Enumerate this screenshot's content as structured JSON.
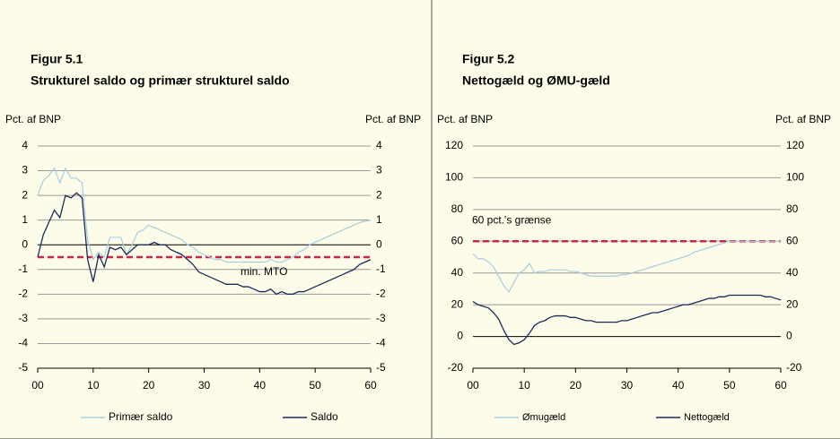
{
  "chart_data": [
    {
      "type": "line",
      "figure_label": "Figur 5.1",
      "title": "Strukturel saldo og primær strukturel saldo",
      "ylabel": "Pct. af BNP",
      "y2label": "Pct. af BNP",
      "x": [
        0,
        1,
        2,
        3,
        4,
        5,
        6,
        7,
        8,
        9,
        10,
        11,
        12,
        13,
        14,
        15,
        16,
        17,
        18,
        19,
        20,
        21,
        22,
        23,
        24,
        25,
        26,
        27,
        28,
        29,
        30,
        31,
        32,
        33,
        34,
        35,
        36,
        37,
        38,
        39,
        40,
        41,
        42,
        43,
        44,
        45,
        46,
        47,
        48,
        49,
        50,
        51,
        52,
        53,
        54,
        55,
        56,
        57,
        58,
        59,
        60
      ],
      "xlim": [
        0,
        60
      ],
      "xticks": [
        {
          "value": 0,
          "label": "00"
        },
        10,
        20,
        30,
        40,
        50,
        60
      ],
      "ylim": [
        -5,
        4
      ],
      "yticks": [
        -5,
        -4,
        -3,
        -2,
        -1,
        0,
        1,
        2,
        3,
        4
      ],
      "y2lim": [
        -5,
        4
      ],
      "y2ticks": [
        -5,
        -4,
        -3,
        -2,
        -1,
        0,
        1,
        2,
        3,
        4
      ],
      "grid": true,
      "reference_line": {
        "value": -0.5,
        "label": "min. MTO",
        "color": "#c8254a"
      },
      "series": [
        {
          "name": "Primær saldo",
          "color": "#a9cde0",
          "values": [
            2.0,
            2.6,
            2.8,
            3.1,
            2.5,
            3.1,
            2.7,
            2.7,
            2.5,
            0.2,
            -0.6,
            -0.3,
            -0.5,
            0.3,
            0.3,
            0.3,
            -0.4,
            0.0,
            0.5,
            0.6,
            0.8,
            0.7,
            0.6,
            0.5,
            0.4,
            0.3,
            0.2,
            0.0,
            -0.1,
            -0.3,
            -0.4,
            -0.5,
            -0.6,
            -0.6,
            -0.7,
            -0.7,
            -0.7,
            -0.7,
            -0.7,
            -0.7,
            -0.7,
            -0.7,
            -0.6,
            -0.7,
            -0.7,
            -0.6,
            -0.5,
            -0.3,
            -0.2,
            0.0,
            0.1,
            0.2,
            0.3,
            0.4,
            0.5,
            0.6,
            0.7,
            0.8,
            0.9,
            0.95,
            1.0
          ]
        },
        {
          "name": "Saldo",
          "color": "#1b2a5c",
          "values": [
            -0.5,
            0.4,
            0.9,
            1.4,
            1.1,
            2.0,
            1.9,
            2.1,
            1.9,
            -0.6,
            -1.5,
            -0.4,
            -0.9,
            -0.1,
            -0.2,
            -0.1,
            -0.4,
            -0.2,
            0.0,
            0.0,
            0.0,
            0.1,
            0.0,
            0.0,
            -0.2,
            -0.3,
            -0.4,
            -0.6,
            -0.8,
            -1.1,
            -1.2,
            -1.3,
            -1.4,
            -1.5,
            -1.6,
            -1.6,
            -1.6,
            -1.7,
            -1.7,
            -1.8,
            -1.9,
            -1.9,
            -1.8,
            -2.0,
            -1.9,
            -2.0,
            -2.0,
            -1.9,
            -1.9,
            -1.8,
            -1.7,
            -1.6,
            -1.5,
            -1.4,
            -1.3,
            -1.2,
            -1.1,
            -1.0,
            -0.8,
            -0.7,
            -0.6
          ]
        }
      ]
    },
    {
      "type": "line",
      "figure_label": "Figur 5.2",
      "title": "Nettogæld og ØMU-gæld",
      "ylabel": "Pct. af BNP",
      "y2label": "Pct. af BNP",
      "x": [
        0,
        1,
        2,
        3,
        4,
        5,
        6,
        7,
        8,
        9,
        10,
        11,
        12,
        13,
        14,
        15,
        16,
        17,
        18,
        19,
        20,
        21,
        22,
        23,
        24,
        25,
        26,
        27,
        28,
        29,
        30,
        31,
        32,
        33,
        34,
        35,
        36,
        37,
        38,
        39,
        40,
        41,
        42,
        43,
        44,
        45,
        46,
        47,
        48,
        49,
        50,
        51,
        52,
        53,
        54,
        55,
        56,
        57,
        58,
        59,
        60
      ],
      "xlim": [
        0,
        60
      ],
      "xticks": [
        {
          "value": 0,
          "label": "00"
        },
        10,
        20,
        30,
        40,
        50,
        60
      ],
      "ylim": [
        -20,
        120
      ],
      "yticks": [
        -20,
        0,
        20,
        40,
        60,
        80,
        100,
        120
      ],
      "y2lim": [
        -20,
        120
      ],
      "y2ticks": [
        -20,
        0,
        20,
        40,
        60,
        80,
        100,
        120
      ],
      "grid": true,
      "reference_line": {
        "value": 60,
        "label": "60 pct.'s grænse",
        "color": "#c8254a"
      },
      "series": [
        {
          "name": "Ømugæld",
          "color": "#a9cde0",
          "values": [
            52,
            49,
            49,
            47,
            44,
            38,
            32,
            28,
            34,
            40,
            42,
            46,
            40,
            41,
            41,
            42,
            42,
            42,
            42,
            41,
            41,
            40,
            39,
            38,
            38,
            38,
            38,
            38,
            38,
            39,
            39,
            40,
            41,
            42,
            43,
            44,
            45,
            46,
            47,
            48,
            49,
            50,
            51,
            53,
            54,
            55,
            56,
            57,
            58,
            59,
            60,
            60,
            60,
            60,
            60,
            60,
            60,
            60,
            60,
            60,
            60
          ]
        },
        {
          "name": "Nettogæld",
          "color": "#1b2a5c",
          "values": [
            22,
            20,
            19,
            18,
            15,
            11,
            4,
            -2,
            -5,
            -4,
            -2,
            2,
            7,
            9,
            10,
            12,
            13,
            13,
            13,
            12,
            12,
            11,
            10,
            10,
            9,
            9,
            9,
            9,
            9,
            10,
            10,
            11,
            12,
            13,
            14,
            15,
            15,
            16,
            17,
            18,
            19,
            20,
            20,
            21,
            22,
            23,
            24,
            24,
            25,
            25,
            26,
            26,
            26,
            26,
            26,
            26,
            26,
            25,
            25,
            24,
            23
          ]
        }
      ]
    }
  ]
}
